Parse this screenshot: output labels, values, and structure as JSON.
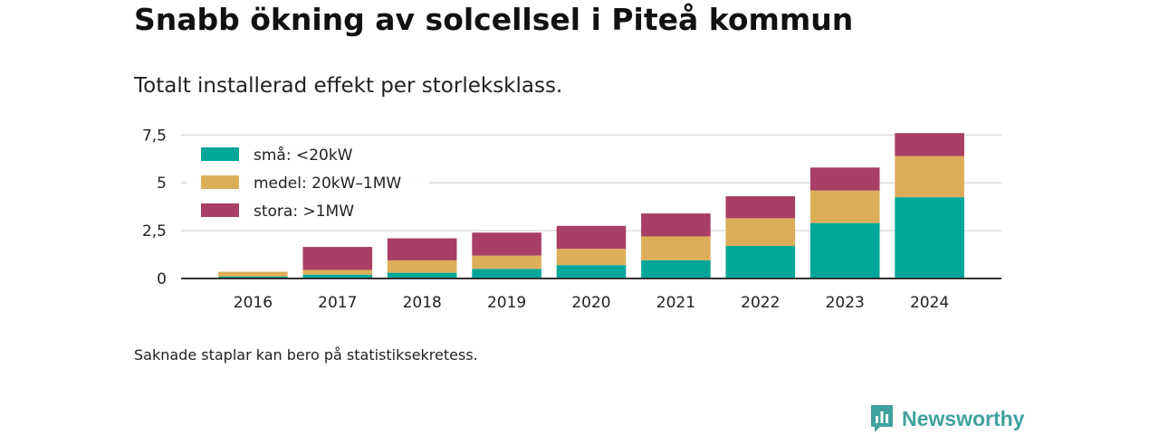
{
  "page": {
    "title": "Snabb ökning av solcellsel i Piteå kommun",
    "subtitle": "Totalt installerad effekt per storleksklass.",
    "note": "Saknade staplar kan bero på statistiksekretess.",
    "brand": "Newsworthy"
  },
  "chart_data": {
    "type": "bar",
    "stacked": true,
    "title": "Snabb ökning av solcellsel i Piteå kommun",
    "subtitle": "Totalt installerad effekt per storleksklass.",
    "xlabel": "",
    "ylabel": "",
    "categories": [
      "2016",
      "2017",
      "2018",
      "2019",
      "2020",
      "2021",
      "2022",
      "2023",
      "2024"
    ],
    "ylim": [
      0,
      7.8
    ],
    "yticks": [
      0,
      2.5,
      5,
      7.5
    ],
    "ytick_labels": [
      "0",
      "2,5",
      "5",
      "7,5"
    ],
    "grid": true,
    "legend": "top-left",
    "series": [
      {
        "name": "små: <20kW",
        "color": "#00a69a",
        "values": [
          0.1,
          0.2,
          0.3,
          0.5,
          0.7,
          0.95,
          1.7,
          2.9,
          4.25
        ]
      },
      {
        "name": "medel: 20kW–1MW",
        "color": "#dcae5a",
        "values": [
          0.25,
          0.25,
          0.65,
          0.7,
          0.85,
          1.25,
          1.45,
          1.7,
          2.15
        ]
      },
      {
        "name": "stora: >1MW",
        "color": "#a83f66",
        "values": [
          0.0,
          1.2,
          1.15,
          1.2,
          1.2,
          1.2,
          1.15,
          1.2,
          1.2
        ]
      }
    ]
  }
}
